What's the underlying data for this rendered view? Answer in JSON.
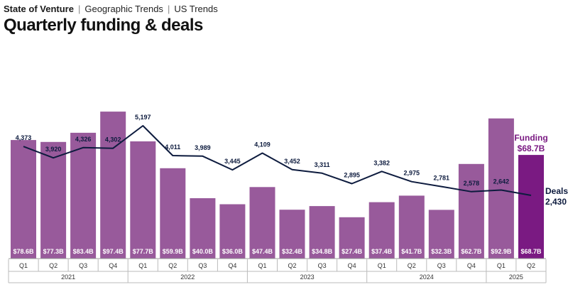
{
  "breadcrumb": {
    "item1": "State of Venture",
    "sep1": "|",
    "item2": "Geographic Trends",
    "sep2": "|",
    "item3": "US Trends"
  },
  "title": "Quarterly funding & deals",
  "colors": {
    "bar": "#985a9b",
    "bar_highlight": "#7a1a82",
    "line": "#0d1b3e"
  },
  "chart_data": {
    "type": "bar",
    "title": "Quarterly funding & deals",
    "categories": [
      "Q1",
      "Q2",
      "Q3",
      "Q4",
      "Q1",
      "Q2",
      "Q3",
      "Q4",
      "Q1",
      "Q2",
      "Q3",
      "Q4",
      "Q1",
      "Q2",
      "Q3",
      "Q4",
      "Q1",
      "Q2"
    ],
    "years": [
      "2021",
      "2022",
      "2023",
      "2024",
      "2025"
    ],
    "series": [
      {
        "name": "Funding",
        "type": "bar",
        "values": [
          78.6,
          77.3,
          83.4,
          97.4,
          77.7,
          59.9,
          40.0,
          36.0,
          47.4,
          32.4,
          34.8,
          27.4,
          37.4,
          41.7,
          32.3,
          62.7,
          92.9,
          68.7
        ],
        "labels": [
          "$78.6B",
          "$77.3B",
          "$83.4B",
          "$97.4B",
          "$77.7B",
          "$59.9B",
          "$40.0B",
          "$36.0B",
          "$47.4B",
          "$32.4B",
          "$34.8B",
          "$27.4B",
          "$37.4B",
          "$41.7B",
          "$32.3B",
          "$62.7B",
          "$92.9B",
          "$68.7B"
        ]
      },
      {
        "name": "Deals",
        "type": "line",
        "values": [
          4373,
          3920,
          4326,
          4302,
          5197,
          4011,
          3989,
          3445,
          4109,
          3452,
          3311,
          2895,
          3382,
          2975,
          2781,
          2578,
          2642,
          2430
        ],
        "labels": [
          "4,373",
          "3,920",
          "4,326",
          "4,302",
          "5,197",
          "4,011",
          "3,989",
          "3,445",
          "4,109",
          "3,452",
          "3,311",
          "2,895",
          "3,382",
          "2,975",
          "2,781",
          "2,578",
          "2,642",
          "2,430"
        ]
      }
    ],
    "callouts": {
      "funding_label": "Funding",
      "funding_value": "$68.7B",
      "deals_label": "Deals",
      "deals_value": "2,430"
    }
  }
}
